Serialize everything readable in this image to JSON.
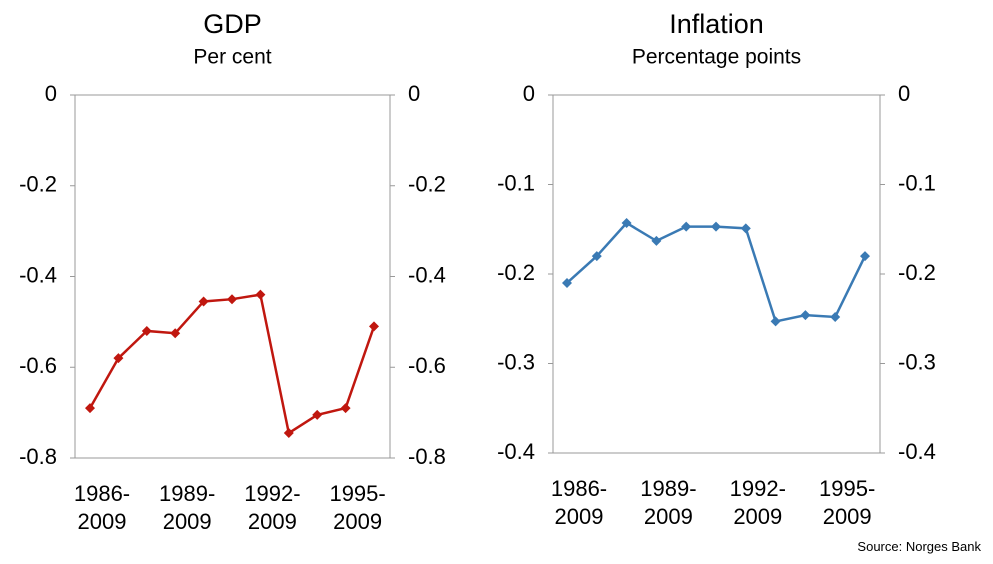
{
  "chart_data": [
    {
      "type": "line",
      "title": "GDP",
      "subtitle": "Per cent",
      "categories": [
        "1986-\n2009",
        null,
        null,
        "1989-\n2009",
        null,
        null,
        "1992-\n2009",
        null,
        null,
        "1995-\n2009",
        null
      ],
      "series": [
        {
          "color": "#c0170f",
          "values": [
            -0.69,
            -0.58,
            -0.52,
            -0.525,
            -0.455,
            -0.45,
            -0.44,
            -0.745,
            -0.705,
            -0.69,
            -0.51
          ]
        }
      ],
      "ylim": [
        -0.8,
        0
      ],
      "yticks": [
        0,
        -0.2,
        -0.4,
        -0.6,
        -0.8
      ],
      "y2lim": [
        -0.8,
        0
      ],
      "y2ticks": [
        0,
        -0.2,
        -0.4,
        -0.6,
        -0.8
      ]
    },
    {
      "type": "line",
      "title": "Inflation",
      "subtitle": "Percentage points",
      "categories": [
        "1986-\n2009",
        null,
        null,
        "1989-\n2009",
        null,
        null,
        "1992-\n2009",
        null,
        null,
        "1995-\n2009",
        null
      ],
      "series": [
        {
          "color": "#3a7ab4",
          "values": [
            -0.21,
            -0.18,
            -0.143,
            -0.163,
            -0.147,
            -0.147,
            -0.149,
            -0.253,
            -0.246,
            -0.248,
            -0.18
          ]
        }
      ],
      "ylim": [
        -0.4,
        0
      ],
      "yticks": [
        0,
        -0.1,
        -0.2,
        -0.3,
        -0.4
      ],
      "y2lim": [
        -0.4,
        0
      ],
      "y2ticks": [
        0,
        -0.1,
        -0.2,
        -0.3,
        -0.4
      ]
    }
  ],
  "source": "Source: Norges Bank"
}
